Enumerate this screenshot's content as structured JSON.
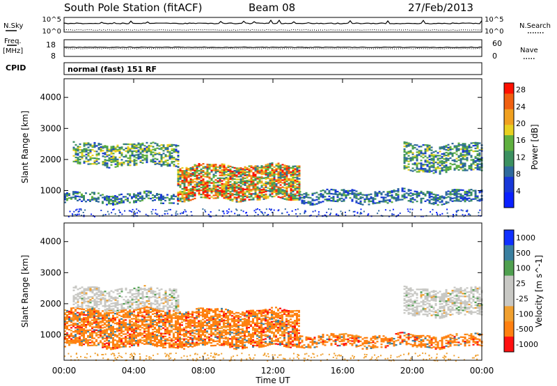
{
  "header": {
    "title": "South Pole Station (fitACF)",
    "beam": "Beam 08",
    "date": "27/Feb/2013"
  },
  "top_panels": {
    "nsky": {
      "label": "N.Sky",
      "ticks": [
        "10^5",
        "10^0"
      ]
    },
    "nsearch": {
      "label": "N.Search",
      "ticks": [
        "10^5",
        "10^0"
      ]
    },
    "freq": {
      "label_line1": "Freq.",
      "label_line2": "[MHz]",
      "ticks": [
        "18",
        "8"
      ]
    },
    "nave": {
      "label": "Nave",
      "ticks": [
        "60",
        "0"
      ]
    },
    "cpid": {
      "label": "CPID",
      "value": "normal (fast) 151 RF"
    }
  },
  "chart_data": [
    {
      "type": "heatmap",
      "quantity": "power",
      "ylabel": "Slant Range [km]",
      "ylim": [
        180,
        4600
      ],
      "yticks": [
        1000,
        2000,
        3000,
        4000
      ],
      "xlim": [
        "00:00",
        "24:00"
      ],
      "colorbar": {
        "label": "Power [dB]",
        "ticks": [
          "4",
          "8",
          "12",
          "16",
          "20",
          "24",
          "28"
        ]
      },
      "colors": {
        "low": "#1030ff",
        "mid": "#3a9060",
        "mid2": "#f0d020",
        "high": "#ff2000"
      },
      "echo_bands": [
        {
          "t_start": 0.5,
          "t_end": 6.6,
          "range_km": [
            1800,
            2500
          ],
          "power_db": [
            6,
            20
          ]
        },
        {
          "t_start": 0.0,
          "t_end": 6.5,
          "range_km": [
            600,
            900
          ],
          "power_db": [
            4,
            16
          ]
        },
        {
          "t_start": 6.5,
          "t_end": 13.5,
          "range_km": [
            700,
            1800
          ],
          "power_db": [
            8,
            30
          ]
        },
        {
          "t_start": 13.5,
          "t_end": 24.0,
          "range_km": [
            600,
            1000
          ],
          "power_db": [
            4,
            14
          ]
        },
        {
          "t_start": 19.5,
          "t_end": 24.0,
          "range_km": [
            1600,
            2500
          ],
          "power_db": [
            6,
            18
          ]
        }
      ]
    },
    {
      "type": "heatmap",
      "quantity": "velocity",
      "ylabel": "Slant Range [km]",
      "ylim": [
        180,
        4600
      ],
      "yticks": [
        1000,
        2000,
        3000,
        4000
      ],
      "xlim": [
        "00:00",
        "24:00"
      ],
      "xticks": [
        "00:00",
        "04:00",
        "08:00",
        "12:00",
        "16:00",
        "20:00",
        "00:00"
      ],
      "xlabel": "Time UT",
      "colorbar": {
        "label": "Velocity [m s^-1]",
        "ticks": [
          "1000",
          "500",
          "100",
          "25",
          "-25",
          "-100",
          "-500",
          "-1000"
        ]
      },
      "colors": {
        "away": "#1840ff",
        "near_zero": "#c8c8c4",
        "toward": "#ff8010",
        "strong_toward": "#ff1010"
      },
      "echo_bands": [
        {
          "t_start": 0.5,
          "t_end": 6.6,
          "range_km": [
            1800,
            2500
          ],
          "velocity": "-25 to 25"
        },
        {
          "t_start": 0.0,
          "t_end": 13.5,
          "range_km": [
            600,
            1800
          ],
          "velocity": "-500 to -100"
        },
        {
          "t_start": 13.5,
          "t_end": 24.0,
          "range_km": [
            600,
            1000
          ],
          "velocity": "-500 to -100"
        },
        {
          "t_start": 19.5,
          "t_end": 24.0,
          "range_km": [
            1600,
            2500
          ],
          "velocity": "-25 to 25"
        }
      ]
    }
  ]
}
